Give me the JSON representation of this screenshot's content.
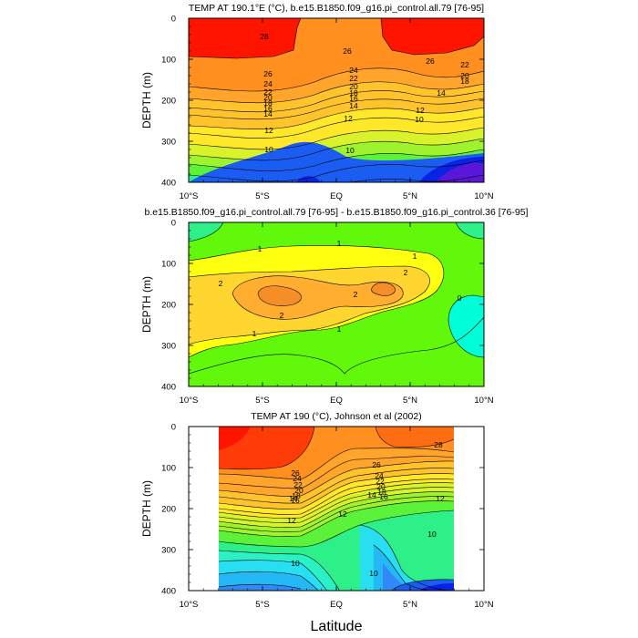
{
  "figure": {
    "xlabel": "Latitude"
  },
  "chart_data": [
    {
      "type": "contour",
      "title": "TEMP AT 190.1°E (°C), b.e15.B1850.f09_g16.pi_control.all.79 [76-95]",
      "ylabel": "DEPTH (m)",
      "xlim": [
        -10,
        10
      ],
      "ylim": [
        400,
        0
      ],
      "x_ticks": [
        "10°S",
        "5°S",
        "EQ",
        "5°N",
        "10°N"
      ],
      "y_ticks": [
        "0",
        "100",
        "200",
        "300",
        "400"
      ],
      "levels": [
        8,
        9,
        10,
        11,
        12,
        13,
        14,
        15,
        16,
        17,
        18,
        19,
        20,
        21,
        22,
        23,
        24,
        25,
        26,
        27,
        28
      ],
      "contour_labels": [
        "28",
        "26",
        "26",
        "26",
        "24",
        "24",
        "22",
        "22",
        "22",
        "20",
        "20",
        "20",
        "18",
        "18",
        "18",
        "16",
        "16",
        "14",
        "14",
        "14",
        "12",
        "12",
        "12",
        "10",
        "10",
        "10"
      ],
      "data_extent": [
        -10,
        10
      ]
    },
    {
      "type": "contour",
      "title": "b.e15.B1850.f09_g16.pi_control.all.79 [76-95] - b.e15.B1850.f09_g16.pi_control.36 [76-95]",
      "ylabel": "DEPTH (m)",
      "xlim": [
        -10,
        10
      ],
      "ylim": [
        400,
        0
      ],
      "x_ticks": [
        "10°S",
        "5°S",
        "EQ",
        "5°N",
        "10°N"
      ],
      "y_ticks": [
        "0",
        "100",
        "200",
        "300",
        "400"
      ],
      "levels": [
        -0.5,
        0,
        0.5,
        1,
        1.5,
        2,
        2.5,
        3
      ],
      "contour_labels": [
        "1",
        "1",
        "1",
        "1",
        "1",
        "2",
        "2",
        "2",
        "2",
        "0"
      ],
      "data_extent": [
        -10,
        10
      ]
    },
    {
      "type": "contour",
      "title": "TEMP AT 190 (°C), Johnson et al (2002)",
      "ylabel": "DEPTH (m)",
      "xlim": [
        -10,
        10
      ],
      "ylim": [
        400,
        0
      ],
      "x_ticks": [
        "10°S",
        "5°S",
        "EQ",
        "5°N",
        "10°N"
      ],
      "y_ticks": [
        "0",
        "100",
        "200",
        "300",
        "400"
      ],
      "levels": [
        8,
        9,
        10,
        11,
        12,
        13,
        14,
        15,
        16,
        17,
        18,
        19,
        20,
        21,
        22,
        23,
        24,
        25,
        26,
        27,
        28
      ],
      "contour_labels": [
        "28",
        "26",
        "26",
        "24",
        "24",
        "22",
        "22",
        "20",
        "20",
        "18",
        "18",
        "16",
        "16",
        "14",
        "14",
        "12",
        "12",
        "12",
        "10",
        "10",
        "10"
      ],
      "data_extent": [
        -8,
        8
      ]
    }
  ],
  "colors": {
    "contour_line": "#000000",
    "background": "#ffffff",
    "temperature_scale": [
      "#5a17d9",
      "#0a22e6",
      "#1b5cf2",
      "#3189f7",
      "#24b8f5",
      "#28dff2",
      "#2af2c4",
      "#2df088",
      "#5cf23a",
      "#9ff22e",
      "#d8f22b",
      "#ffe72a",
      "#ffc32c",
      "#ffa52c",
      "#ff8f1e",
      "#ff6d12",
      "#ff3c08",
      "#ff1400"
    ],
    "difference_scale": [
      "#00ffd8",
      "#61f80c",
      "#ffff10",
      "#ffd630",
      "#ffae30",
      "#f58d28"
    ]
  }
}
